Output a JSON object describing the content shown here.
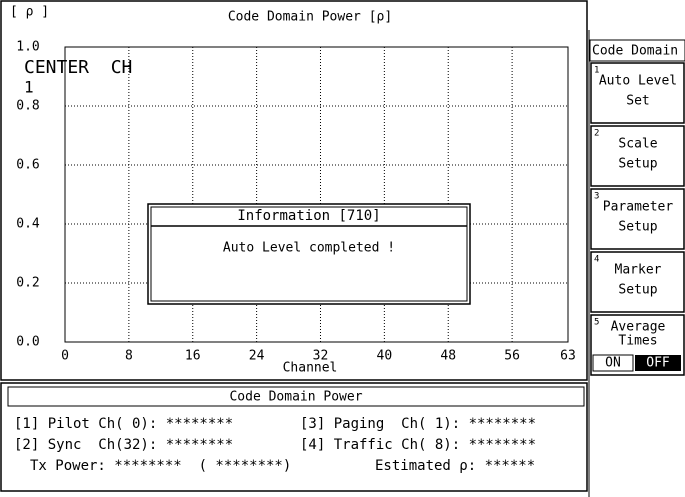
{
  "screen": {
    "plot": {
      "title": "Code Domain Power [ρ]",
      "y_unit": "[ ρ ]",
      "overlay": [
        "CENTER  CH",
        "1"
      ],
      "x_label": "Channel",
      "xlim": [
        0,
        63
      ],
      "ylim": [
        0,
        1
      ],
      "xticks": [
        0,
        8,
        16,
        24,
        32,
        40,
        48,
        56,
        63
      ],
      "yticks": [
        {
          "value": 0,
          "label": "0.0"
        },
        {
          "value": 0.2,
          "label": "0.2"
        },
        {
          "value": 0.4,
          "label": "0.4"
        },
        {
          "value": 0.6,
          "label": "0.6"
        },
        {
          "value": 0.8,
          "label": "0.8"
        },
        {
          "value": 1,
          "label": "1.0"
        }
      ],
      "grid": true
    },
    "dialog": {
      "title": "Information [710]",
      "message": "Auto Level completed !"
    },
    "results": {
      "title": "Code Domain Power",
      "rows": [
        [
          "[1] Pilot Ch( 0): ********",
          "[3] Paging  Ch( 1): ********"
        ],
        [
          "[2] Sync  Ch(32): ********",
          "[4] Traffic Ch( 8): ********"
        ],
        [
          "Tx Power: ********  ( ********)",
          "Estimated ρ: ******"
        ]
      ]
    },
    "menu": {
      "title": "Code Domain",
      "buttons": [
        {
          "number": "1",
          "lines": [
            "Auto Level",
            "Set"
          ]
        },
        {
          "number": "2",
          "lines": [
            "Scale",
            "Setup"
          ]
        },
        {
          "number": "3",
          "lines": [
            "Parameter",
            "Setup"
          ]
        },
        {
          "number": "4",
          "lines": [
            "Marker",
            "Setup"
          ]
        },
        {
          "number": "5",
          "lines": [
            "Average",
            "Times"
          ]
        }
      ],
      "toggle": [
        "ON",
        "OFF"
      ]
    }
  }
}
